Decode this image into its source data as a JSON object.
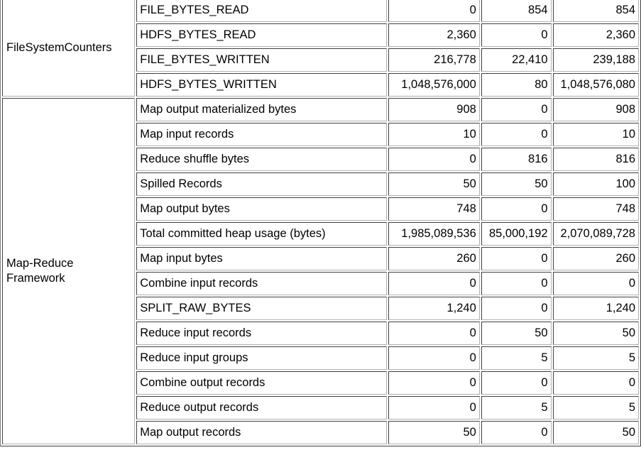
{
  "groups": [
    {
      "name": "FileSystemCounters",
      "rows": [
        {
          "name": "FILE_BYTES_READ",
          "map": "0",
          "reduce": "854",
          "total": "854"
        },
        {
          "name": "HDFS_BYTES_READ",
          "map": "2,360",
          "reduce": "0",
          "total": "2,360"
        },
        {
          "name": "FILE_BYTES_WRITTEN",
          "map": "216,778",
          "reduce": "22,410",
          "total": "239,188"
        },
        {
          "name": "HDFS_BYTES_WRITTEN",
          "map": "1,048,576,000",
          "reduce": "80",
          "total": "1,048,576,080"
        }
      ]
    },
    {
      "name": "Map-Reduce Framework",
      "rows": [
        {
          "name": "Map output materialized bytes",
          "map": "908",
          "reduce": "0",
          "total": "908"
        },
        {
          "name": "Map input records",
          "map": "10",
          "reduce": "0",
          "total": "10"
        },
        {
          "name": "Reduce shuffle bytes",
          "map": "0",
          "reduce": "816",
          "total": "816"
        },
        {
          "name": "Spilled Records",
          "map": "50",
          "reduce": "50",
          "total": "100"
        },
        {
          "name": "Map output bytes",
          "map": "748",
          "reduce": "0",
          "total": "748"
        },
        {
          "name": "Total committed heap usage (bytes)",
          "map": "1,985,089,536",
          "reduce": "85,000,192",
          "total": "2,070,089,728"
        },
        {
          "name": "Map input bytes",
          "map": "260",
          "reduce": "0",
          "total": "260"
        },
        {
          "name": "Combine input records",
          "map": "0",
          "reduce": "0",
          "total": "0"
        },
        {
          "name": "SPLIT_RAW_BYTES",
          "map": "1,240",
          "reduce": "0",
          "total": "1,240"
        },
        {
          "name": "Reduce input records",
          "map": "0",
          "reduce": "50",
          "total": "50"
        },
        {
          "name": "Reduce input groups",
          "map": "0",
          "reduce": "5",
          "total": "5"
        },
        {
          "name": "Combine output records",
          "map": "0",
          "reduce": "0",
          "total": "0"
        },
        {
          "name": "Reduce output records",
          "map": "0",
          "reduce": "5",
          "total": "5"
        },
        {
          "name": "Map output records",
          "map": "50",
          "reduce": "0",
          "total": "50"
        }
      ]
    }
  ]
}
